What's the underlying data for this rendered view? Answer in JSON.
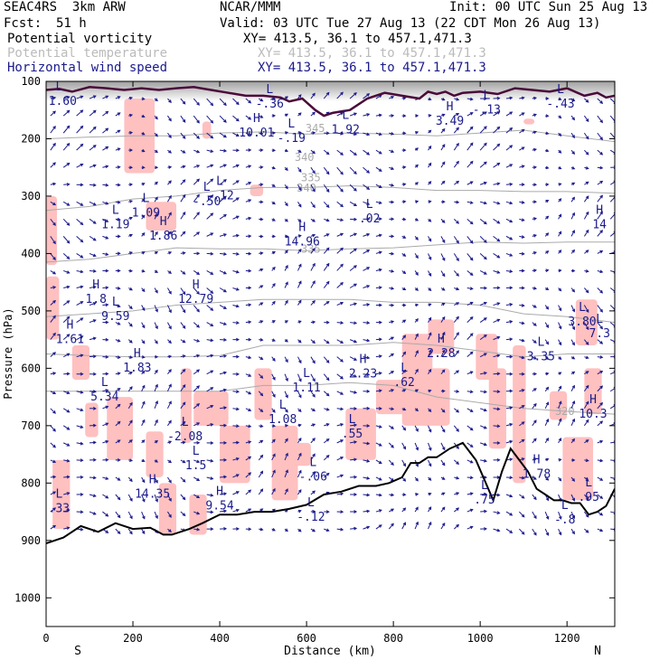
{
  "header": {
    "project": "SEAC4RS  3km ARW",
    "center": "NCAR/MMM",
    "init": "Init: 00 UTC Sun 25 Aug 13",
    "fcst_label": "Fcst:",
    "fcst_value": "51 h",
    "valid": "Valid: 03 UTC Tue 27 Aug 13 (22 CDT Mon 26 Aug 13)"
  },
  "fields": [
    {
      "name": "Potential vorticity",
      "xy": "XY= 413.5, 36.1 to 457.1,471.3",
      "color": "#000000"
    },
    {
      "name": "Potential temperature",
      "xy": "XY= 413.5, 36.1 to 457.1,471.3",
      "color": "#bbbbbb"
    },
    {
      "name": "Horizontal wind speed",
      "xy": "XY= 413.5, 36.1 to 457.1,471.3",
      "color": "#1a1a8c"
    }
  ],
  "colors": {
    "pv_shading": "#ffc0c0",
    "pv_contour": "#4a0a3a",
    "theta": "#aaaaaa",
    "wind": "#1a1a8c",
    "terrain": "#000000"
  },
  "chart_data": {
    "type": "cross-section",
    "xlabel": "Distance (km)",
    "ylabel": "Pressure (hPa)",
    "xlim": [
      0,
      1310
    ],
    "ylim": [
      1050,
      100
    ],
    "y_scale": "linear",
    "x_ticks": [
      0,
      200,
      400,
      600,
      800,
      1000,
      1200
    ],
    "y_ticks": [
      100,
      200,
      300,
      400,
      500,
      600,
      700,
      800,
      900,
      1000
    ],
    "end_labels": {
      "left": "S",
      "right": "N"
    },
    "theta_labels": [
      {
        "text": "345",
        "x": 620,
        "p": 182
      },
      {
        "text": "340",
        "x": 595,
        "p": 232
      },
      {
        "text": "335",
        "x": 610,
        "p": 268
      },
      {
        "text": "340",
        "x": 600,
        "p": 286
      },
      {
        "text": "335",
        "x": 610,
        "p": 392
      },
      {
        "text": "320",
        "x": 1195,
        "p": 675
      }
    ],
    "extrema": [
      {
        "label": "L",
        "value": "-1.60",
        "x": 30,
        "p": 125
      },
      {
        "label": "H",
        "value": "1.83",
        "x": 210,
        "p": 590
      },
      {
        "label": "L",
        "value": "5.34",
        "x": 135,
        "p": 640
      },
      {
        "label": "H",
        "value": "14.35",
        "x": 245,
        "p": 810
      },
      {
        "label": "H",
        "value": "9.54",
        "x": 400,
        "p": 830
      },
      {
        "label": "H",
        "value": "1.8",
        "x": 115,
        "p": 470
      },
      {
        "label": "L",
        "value": "9.59",
        "x": 160,
        "p": 500
      },
      {
        "label": "H",
        "value": "1.61",
        "x": 55,
        "p": 540
      },
      {
        "label": "L",
        "value": "1.19",
        "x": 160,
        "p": 340
      },
      {
        "label": "L",
        "value": "1.09",
        "x": 230,
        "p": 320
      },
      {
        "label": "H",
        "value": "1.86",
        "x": 270,
        "p": 360
      },
      {
        "label": "H",
        "value": "12.79",
        "x": 345,
        "p": 470
      },
      {
        "label": "L",
        "value": "-.50",
        "x": 370,
        "p": 300
      },
      {
        "label": "L",
        "value": "-.12",
        "x": 400,
        "p": 290
      },
      {
        "label": "H",
        "value": "10.01",
        "x": 485,
        "p": 180
      },
      {
        "label": "L",
        "value": "-.19",
        "x": 565,
        "p": 190
      },
      {
        "label": "L",
        "value": "-.36",
        "x": 515,
        "p": 130
      },
      {
        "label": "L",
        "value": "1.92",
        "x": 690,
        "p": 175
      },
      {
        "label": "H",
        "value": "14.96",
        "x": 590,
        "p": 370
      },
      {
        "label": "L",
        "value": ".02",
        "x": 745,
        "p": 330
      },
      {
        "label": "H",
        "value": "3.49",
        "x": 930,
        "p": 160
      },
      {
        "label": "L",
        "value": "-.13",
        "x": 1015,
        "p": 140
      },
      {
        "label": "L",
        "value": "-.43",
        "x": 1185,
        "p": 130
      },
      {
        "label": "H",
        "value": "14",
        "x": 1275,
        "p": 340
      },
      {
        "label": "L",
        "value": "3.80",
        "x": 1235,
        "p": 510
      },
      {
        "label": "L",
        "value": "7.3",
        "x": 1275,
        "p": 530
      },
      {
        "label": "H",
        "value": "2.28",
        "x": 910,
        "p": 565
      },
      {
        "label": "L",
        "value": "3.35",
        "x": 1140,
        "p": 570
      },
      {
        "label": "H",
        "value": "2.23",
        "x": 730,
        "p": 600
      },
      {
        "label": "L",
        "value": "1.11",
        "x": 600,
        "p": 625
      },
      {
        "label": "L",
        "value": ".62",
        "x": 825,
        "p": 615
      },
      {
        "label": "H",
        "value": "10.3",
        "x": 1260,
        "p": 670
      },
      {
        "label": "L",
        "value": "1.08",
        "x": 545,
        "p": 680
      },
      {
        "label": "L",
        "value": ".55",
        "x": 705,
        "p": 705
      },
      {
        "label": "L",
        "value": "-2.08",
        "x": 320,
        "p": 710
      },
      {
        "label": "L",
        "value": "1.5",
        "x": 345,
        "p": 760
      },
      {
        "label": "L",
        "value": "-.06",
        "x": 615,
        "p": 780
      },
      {
        "label": "H",
        "value": "1.78",
        "x": 1130,
        "p": 775
      },
      {
        "label": "L",
        "value": ".95",
        "x": 1250,
        "p": 815
      },
      {
        "label": "L",
        "value": ".75",
        "x": 1010,
        "p": 820
      },
      {
        "label": "L",
        "value": "-.8",
        "x": 1195,
        "p": 855
      },
      {
        "label": "L",
        "value": "-.12",
        "x": 610,
        "p": 850
      },
      {
        "label": "L",
        "value": ".33",
        "x": 30,
        "p": 835
      }
    ],
    "terrain_surface": {
      "x": [
        0,
        40,
        80,
        120,
        160,
        200,
        240,
        270,
        290,
        330,
        360,
        400,
        440,
        480,
        520,
        560,
        600,
        640,
        680,
        720,
        760,
        790,
        820,
        840,
        860,
        880,
        900,
        930,
        960,
        990,
        1010,
        1030,
        1050,
        1070,
        1090,
        1110,
        1130,
        1150,
        1170,
        1190,
        1210,
        1230,
        1250,
        1270,
        1290,
        1310
      ],
      "p": [
        905,
        895,
        875,
        885,
        870,
        880,
        878,
        890,
        890,
        880,
        870,
        855,
        855,
        850,
        850,
        845,
        838,
        820,
        815,
        805,
        805,
        800,
        790,
        765,
        765,
        755,
        755,
        740,
        730,
        760,
        795,
        830,
        780,
        740,
        760,
        780,
        810,
        820,
        830,
        830,
        835,
        835,
        855,
        850,
        840,
        810
      ]
    },
    "tropopause_contour": {
      "x": [
        0,
        30,
        60,
        100,
        140,
        180,
        220,
        260,
        300,
        340,
        380,
        420,
        460,
        500,
        540,
        560,
        590,
        620,
        640,
        660,
        700,
        740,
        780,
        820,
        860,
        880,
        900,
        920,
        940,
        960,
        1000,
        1040,
        1080,
        1120,
        1160,
        1200,
        1240,
        1270,
        1290,
        1310
      ],
      "p": [
        115,
        113,
        118,
        110,
        112,
        115,
        112,
        115,
        112,
        110,
        115,
        120,
        125,
        125,
        128,
        135,
        130,
        150,
        160,
        155,
        150,
        130,
        120,
        125,
        130,
        118,
        122,
        118,
        125,
        120,
        118,
        122,
        112,
        115,
        118,
        112,
        125,
        120,
        128,
        125
      ]
    },
    "theta_lines": [
      {
        "p": [
          200,
          197,
          195,
          195,
          190,
          188,
          192,
          190,
          192,
          195,
          190,
          185,
          195,
          205
        ]
      },
      {
        "p": [
          325,
          318,
          305,
          300,
          290,
          285,
          285,
          282,
          285,
          290,
          290,
          292,
          292,
          295
        ]
      },
      {
        "p": [
          415,
          410,
          400,
          390,
          392,
          392,
          395,
          392,
          390,
          385,
          380,
          382,
          380,
          380
        ]
      },
      {
        "p": [
          510,
          505,
          500,
          490,
          485,
          480,
          480,
          480,
          485,
          485,
          490,
          505,
          510,
          520
        ]
      },
      {
        "p": [
          575,
          578,
          580,
          580,
          578,
          560,
          560,
          560,
          555,
          560,
          570,
          580,
          575,
          575
        ]
      },
      {
        "p": [
          640,
          640,
          640,
          640,
          640,
          630,
          630,
          625,
          630,
          650,
          660,
          670,
          675,
          680
        ]
      }
    ],
    "theta_x": [
      0,
      100,
      200,
      300,
      400,
      500,
      600,
      700,
      800,
      900,
      1000,
      1100,
      1200,
      1310
    ],
    "pv_shading_regions": [
      {
        "x": [
          180,
          250
        ],
        "p": [
          130,
          260
        ]
      },
      {
        "x": [
          230,
          300
        ],
        "p": [
          310,
          360
        ]
      },
      {
        "x": [
          0,
          25
        ],
        "p": [
          300,
          420
        ]
      },
      {
        "x": [
          0,
          30
        ],
        "p": [
          440,
          550
        ]
      },
      {
        "x": [
          60,
          100
        ],
        "p": [
          560,
          620
        ]
      },
      {
        "x": [
          90,
          120
        ],
        "p": [
          660,
          720
        ]
      },
      {
        "x": [
          15,
          55
        ],
        "p": [
          760,
          880
        ]
      },
      {
        "x": [
          140,
          200
        ],
        "p": [
          650,
          760
        ]
      },
      {
        "x": [
          230,
          270
        ],
        "p": [
          710,
          790
        ]
      },
      {
        "x": [
          260,
          300
        ],
        "p": [
          800,
          890
        ]
      },
      {
        "x": [
          310,
          335
        ],
        "p": [
          600,
          730
        ]
      },
      {
        "x": [
          340,
          420
        ],
        "p": [
          640,
          700
        ]
      },
      {
        "x": [
          330,
          370
        ],
        "p": [
          820,
          890
        ]
      },
      {
        "x": [
          400,
          470
        ],
        "p": [
          700,
          800
        ]
      },
      {
        "x": [
          480,
          520
        ],
        "p": [
          600,
          690
        ]
      },
      {
        "x": [
          520,
          580
        ],
        "p": [
          700,
          830
        ]
      },
      {
        "x": [
          560,
          610
        ],
        "p": [
          730,
          770
        ]
      },
      {
        "x": [
          690,
          760
        ],
        "p": [
          670,
          760
        ]
      },
      {
        "x": [
          760,
          830
        ],
        "p": [
          620,
          680
        ]
      },
      {
        "x": [
          820,
          890
        ],
        "p": [
          540,
          700
        ]
      },
      {
        "x": [
          860,
          930
        ],
        "p": [
          600,
          700
        ]
      },
      {
        "x": [
          880,
          940
        ],
        "p": [
          515,
          575
        ]
      },
      {
        "x": [
          990,
          1040
        ],
        "p": [
          540,
          620
        ]
      },
      {
        "x": [
          1020,
          1060
        ],
        "p": [
          600,
          740
        ]
      },
      {
        "x": [
          1075,
          1105
        ],
        "p": [
          560,
          800
        ]
      },
      {
        "x": [
          1160,
          1200
        ],
        "p": [
          640,
          690
        ]
      },
      {
        "x": [
          1190,
          1260
        ],
        "p": [
          720,
          830
        ]
      },
      {
        "x": [
          1220,
          1270
        ],
        "p": [
          480,
          560
        ]
      },
      {
        "x": [
          1240,
          1280
        ],
        "p": [
          600,
          680
        ]
      },
      {
        "x": [
          360,
          380
        ],
        "p": [
          170,
          200
        ]
      },
      {
        "x": [
          470,
          500
        ],
        "p": [
          280,
          300
        ]
      },
      {
        "x": [
          1100,
          1125
        ],
        "p": [
          165,
          175
        ]
      }
    ]
  }
}
